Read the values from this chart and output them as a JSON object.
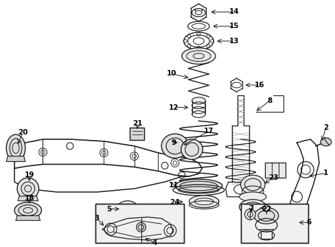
{
  "bg_color": "#ffffff",
  "line_color": "#1a1a1a",
  "text_color": "#000000",
  "fig_width": 4.89,
  "fig_height": 3.6,
  "dpi": 100
}
